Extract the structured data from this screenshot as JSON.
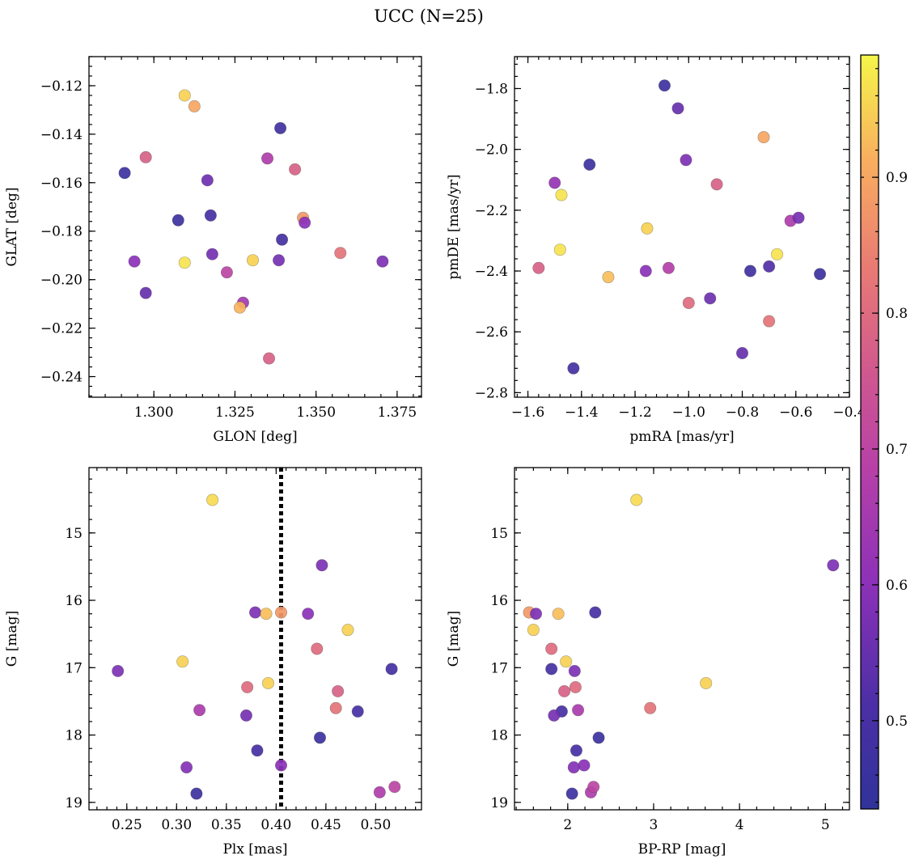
{
  "figure": {
    "title": "UCC (N=25)"
  },
  "colorbar": {
    "cmap": "plasma",
    "range": [
      0.435,
      0.99
    ],
    "ticks": [
      0.5,
      0.6,
      0.7,
      0.8,
      0.9
    ],
    "tick_labels": [
      "0.5",
      "0.6",
      "0.7",
      "0.8",
      "0.9"
    ]
  },
  "chart_data": [
    {
      "type": "scatter",
      "xlabel": "GLON [deg]",
      "ylabel": "GLAT [deg]",
      "xlim": [
        1.28,
        1.3825
      ],
      "ylim": [
        -0.2485,
        -0.108
      ],
      "xticks": [
        1.3,
        1.325,
        1.35,
        1.375
      ],
      "xtick_labels": [
        "1.300",
        "1.325",
        "1.350",
        "1.375"
      ],
      "xminor": 0.005,
      "yticks": [
        -0.24,
        -0.22,
        -0.2,
        -0.18,
        -0.16,
        -0.14,
        -0.12
      ],
      "ytick_labels": [
        "−0.24",
        "−0.22",
        "−0.20",
        "−0.18",
        "−0.16",
        "−0.14",
        "−0.12"
      ],
      "yminor": 0.004,
      "invert_y": false,
      "points": [
        {
          "x": 1.291,
          "y": -0.156,
          "c": 0.47
        },
        {
          "x": 1.2975,
          "y": -0.1495,
          "c": 0.78
        },
        {
          "x": 1.294,
          "y": -0.1925,
          "c": 0.6
        },
        {
          "x": 1.2975,
          "y": -0.2055,
          "c": 0.55
        },
        {
          "x": 1.3075,
          "y": -0.1755,
          "c": 0.47
        },
        {
          "x": 1.3095,
          "y": -0.124,
          "c": 0.95
        },
        {
          "x": 1.3125,
          "y": -0.1285,
          "c": 0.9
        },
        {
          "x": 1.3095,
          "y": -0.193,
          "c": 0.97
        },
        {
          "x": 1.3165,
          "y": -0.159,
          "c": 0.56
        },
        {
          "x": 1.3175,
          "y": -0.1735,
          "c": 0.5
        },
        {
          "x": 1.318,
          "y": -0.1895,
          "c": 0.57
        },
        {
          "x": 1.3225,
          "y": -0.197,
          "c": 0.7
        },
        {
          "x": 1.3275,
          "y": -0.2095,
          "c": 0.65
        },
        {
          "x": 1.3265,
          "y": -0.2115,
          "c": 0.92
        },
        {
          "x": 1.3305,
          "y": -0.192,
          "c": 0.95
        },
        {
          "x": 1.335,
          "y": -0.15,
          "c": 0.67
        },
        {
          "x": 1.339,
          "y": -0.1375,
          "c": 0.48
        },
        {
          "x": 1.3385,
          "y": -0.192,
          "c": 0.57
        },
        {
          "x": 1.3395,
          "y": -0.1835,
          "c": 0.49
        },
        {
          "x": 1.3355,
          "y": -0.2325,
          "c": 0.78
        },
        {
          "x": 1.3435,
          "y": -0.1545,
          "c": 0.78
        },
        {
          "x": 1.346,
          "y": -0.1745,
          "c": 0.88
        },
        {
          "x": 1.3465,
          "y": -0.1765,
          "c": 0.6
        },
        {
          "x": 1.3575,
          "y": -0.189,
          "c": 0.82
        },
        {
          "x": 1.3705,
          "y": -0.1925,
          "c": 0.58
        }
      ]
    },
    {
      "type": "scatter",
      "xlabel": "pmRA [mas/yr]",
      "ylabel": "pmDE [mas/yr]",
      "xlim": [
        -1.65,
        -0.4
      ],
      "ylim": [
        -2.815,
        -1.695
      ],
      "xticks": [
        -1.6,
        -1.4,
        -1.2,
        -1.0,
        -0.8,
        -0.6,
        -0.4
      ],
      "xtick_labels": [
        "−1.6",
        "−1.4",
        "−1.2",
        "−1.0",
        "−0.8",
        "−0.6",
        "−0.4"
      ],
      "xminor": 0.04,
      "yticks": [
        -2.8,
        -2.6,
        -2.4,
        -2.2,
        -2.0,
        -1.8
      ],
      "ytick_labels": [
        "−2.8",
        "−2.6",
        "−2.4",
        "−2.2",
        "−2.0",
        "−1.8"
      ],
      "yminor": 0.04,
      "invert_y": false,
      "points": [
        {
          "x": -1.09,
          "y": -1.79,
          "c": 0.47
        },
        {
          "x": -1.04,
          "y": -1.865,
          "c": 0.55
        },
        {
          "x": -1.37,
          "y": -2.05,
          "c": 0.47
        },
        {
          "x": -1.01,
          "y": -2.035,
          "c": 0.58
        },
        {
          "x": -0.72,
          "y": -1.96,
          "c": 0.9
        },
        {
          "x": -1.5,
          "y": -2.11,
          "c": 0.62
        },
        {
          "x": -1.475,
          "y": -2.15,
          "c": 0.97
        },
        {
          "x": -0.895,
          "y": -2.115,
          "c": 0.78
        },
        {
          "x": -1.155,
          "y": -2.26,
          "c": 0.95
        },
        {
          "x": -0.62,
          "y": -2.235,
          "c": 0.67
        },
        {
          "x": -0.59,
          "y": -2.225,
          "c": 0.57
        },
        {
          "x": -1.48,
          "y": -2.33,
          "c": 0.97
        },
        {
          "x": -0.67,
          "y": -2.345,
          "c": 0.97
        },
        {
          "x": -1.56,
          "y": -2.39,
          "c": 0.78
        },
        {
          "x": -1.075,
          "y": -2.39,
          "c": 0.68
        },
        {
          "x": -1.16,
          "y": -2.4,
          "c": 0.6
        },
        {
          "x": -0.7,
          "y": -2.385,
          "c": 0.52
        },
        {
          "x": -0.77,
          "y": -2.4,
          "c": 0.48
        },
        {
          "x": -0.51,
          "y": -2.41,
          "c": 0.47
        },
        {
          "x": -1.3,
          "y": -2.42,
          "c": 0.93
        },
        {
          "x": -0.92,
          "y": -2.49,
          "c": 0.56
        },
        {
          "x": -1.0,
          "y": -2.505,
          "c": 0.8
        },
        {
          "x": -0.7,
          "y": -2.565,
          "c": 0.82
        },
        {
          "x": -0.8,
          "y": -2.67,
          "c": 0.55
        },
        {
          "x": -1.43,
          "y": -2.72,
          "c": 0.49
        }
      ]
    },
    {
      "type": "scatter",
      "xlabel": "Plx [mas]",
      "ylabel": "G [mag]",
      "xlim": [
        0.212,
        0.546
      ],
      "ylim": [
        14.03,
        19.11
      ],
      "xticks": [
        0.25,
        0.3,
        0.35,
        0.4,
        0.45,
        0.5
      ],
      "xtick_labels": [
        "0.25",
        "0.30",
        "0.35",
        "0.40",
        "0.45",
        "0.50"
      ],
      "xminor": 0.01,
      "yticks": [
        15,
        16,
        17,
        18,
        19
      ],
      "ytick_labels": [
        "15",
        "16",
        "17",
        "18",
        "19"
      ],
      "yminor": 0.2,
      "invert_y": true,
      "vline": 0.405,
      "points": [
        {
          "x": 0.336,
          "y": 14.51,
          "c": 0.96
        },
        {
          "x": 0.446,
          "y": 15.48,
          "c": 0.58
        },
        {
          "x": 0.379,
          "y": 16.18,
          "c": 0.58
        },
        {
          "x": 0.39,
          "y": 16.2,
          "c": 0.93
        },
        {
          "x": 0.405,
          "y": 16.18,
          "c": 0.88
        },
        {
          "x": 0.432,
          "y": 16.2,
          "c": 0.6
        },
        {
          "x": 0.472,
          "y": 16.44,
          "c": 0.95
        },
        {
          "x": 0.441,
          "y": 16.72,
          "c": 0.8
        },
        {
          "x": 0.306,
          "y": 16.91,
          "c": 0.95
        },
        {
          "x": 0.241,
          "y": 17.05,
          "c": 0.58
        },
        {
          "x": 0.516,
          "y": 17.02,
          "c": 0.49
        },
        {
          "x": 0.392,
          "y": 17.23,
          "c": 0.95
        },
        {
          "x": 0.371,
          "y": 17.29,
          "c": 0.8
        },
        {
          "x": 0.462,
          "y": 17.35,
          "c": 0.78
        },
        {
          "x": 0.46,
          "y": 17.6,
          "c": 0.82
        },
        {
          "x": 0.482,
          "y": 17.65,
          "c": 0.5
        },
        {
          "x": 0.323,
          "y": 17.63,
          "c": 0.66
        },
        {
          "x": 0.37,
          "y": 17.71,
          "c": 0.57
        },
        {
          "x": 0.444,
          "y": 18.04,
          "c": 0.47
        },
        {
          "x": 0.381,
          "y": 18.23,
          "c": 0.5
        },
        {
          "x": 0.405,
          "y": 18.45,
          "c": 0.6
        },
        {
          "x": 0.31,
          "y": 18.48,
          "c": 0.59
        },
        {
          "x": 0.32,
          "y": 18.87,
          "c": 0.47
        },
        {
          "x": 0.504,
          "y": 18.85,
          "c": 0.67
        },
        {
          "x": 0.519,
          "y": 18.77,
          "c": 0.7
        }
      ]
    },
    {
      "type": "scatter",
      "xlabel": "BP-RP [mag]",
      "ylabel": "G [mag]",
      "xlim": [
        1.38,
        5.28
      ],
      "ylim": [
        14.03,
        19.11
      ],
      "xticks": [
        2,
        3,
        4,
        5
      ],
      "xtick_labels": [
        "2",
        "3",
        "4",
        "5"
      ],
      "xminor": 0.2,
      "yticks": [
        15,
        16,
        17,
        18,
        19
      ],
      "ytick_labels": [
        "15",
        "16",
        "17",
        "18",
        "19"
      ],
      "yminor": 0.2,
      "invert_y": true,
      "points": [
        {
          "x": 2.8,
          "y": 14.51,
          "c": 0.96
        },
        {
          "x": 5.09,
          "y": 15.48,
          "c": 0.58
        },
        {
          "x": 1.55,
          "y": 16.18,
          "c": 0.88
        },
        {
          "x": 1.63,
          "y": 16.2,
          "c": 0.58
        },
        {
          "x": 1.89,
          "y": 16.2,
          "c": 0.93
        },
        {
          "x": 2.32,
          "y": 16.18,
          "c": 0.5
        },
        {
          "x": 1.6,
          "y": 16.44,
          "c": 0.95
        },
        {
          "x": 1.81,
          "y": 16.72,
          "c": 0.8
        },
        {
          "x": 1.98,
          "y": 16.91,
          "c": 0.95
        },
        {
          "x": 1.81,
          "y": 17.02,
          "c": 0.49
        },
        {
          "x": 2.08,
          "y": 17.05,
          "c": 0.58
        },
        {
          "x": 3.61,
          "y": 17.23,
          "c": 0.95
        },
        {
          "x": 2.09,
          "y": 17.29,
          "c": 0.8
        },
        {
          "x": 1.96,
          "y": 17.35,
          "c": 0.78
        },
        {
          "x": 2.96,
          "y": 17.6,
          "c": 0.82
        },
        {
          "x": 1.93,
          "y": 17.65,
          "c": 0.5
        },
        {
          "x": 2.12,
          "y": 17.63,
          "c": 0.66
        },
        {
          "x": 1.84,
          "y": 17.71,
          "c": 0.57
        },
        {
          "x": 2.36,
          "y": 18.04,
          "c": 0.47
        },
        {
          "x": 2.1,
          "y": 18.23,
          "c": 0.5
        },
        {
          "x": 2.19,
          "y": 18.45,
          "c": 0.6
        },
        {
          "x": 2.07,
          "y": 18.48,
          "c": 0.59
        },
        {
          "x": 2.05,
          "y": 18.87,
          "c": 0.47
        },
        {
          "x": 2.27,
          "y": 18.85,
          "c": 0.67
        },
        {
          "x": 2.3,
          "y": 18.77,
          "c": 0.7
        }
      ]
    }
  ]
}
